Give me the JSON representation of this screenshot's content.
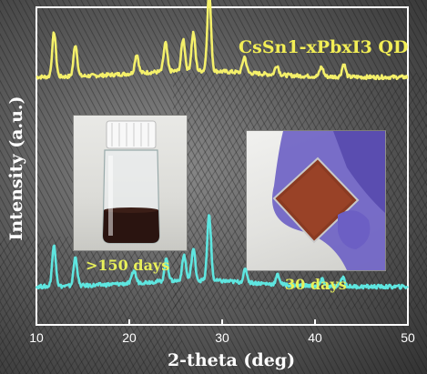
{
  "chart_data": {
    "type": "line",
    "xlabel": "2-theta (deg)",
    "ylabel": "Intensity (a.u.)",
    "xlim": [
      10,
      50
    ],
    "x_ticks": [
      "10",
      "20",
      "30",
      "40",
      "50"
    ],
    "series": [
      {
        "name": "CsSn1-xPbxI3 QD",
        "color": "#f4f06a",
        "baseline": 0.78,
        "peaks": [
          {
            "x": 11.9,
            "h": 0.14
          },
          {
            "x": 14.2,
            "h": 0.1
          },
          {
            "x": 20.8,
            "h": 0.06
          },
          {
            "x": 23.9,
            "h": 0.09
          },
          {
            "x": 25.8,
            "h": 0.1
          },
          {
            "x": 26.9,
            "h": 0.12
          },
          {
            "x": 28.6,
            "h": 0.25
          },
          {
            "x": 32.4,
            "h": 0.05
          },
          {
            "x": 35.9,
            "h": 0.03
          },
          {
            "x": 40.7,
            "h": 0.03
          },
          {
            "x": 43.1,
            "h": 0.04
          }
        ]
      },
      {
        "name": "",
        "color": "#5ee6e0",
        "baseline": 0.12,
        "peaks": [
          {
            "x": 11.9,
            "h": 0.13
          },
          {
            "x": 14.2,
            "h": 0.09
          },
          {
            "x": 20.5,
            "h": 0.04
          },
          {
            "x": 24.0,
            "h": 0.07
          },
          {
            "x": 25.9,
            "h": 0.08
          },
          {
            "x": 26.9,
            "h": 0.1
          },
          {
            "x": 28.6,
            "h": 0.21
          },
          {
            "x": 32.5,
            "h": 0.04
          },
          {
            "x": 36.0,
            "h": 0.03
          },
          {
            "x": 40.8,
            "h": 0.02
          },
          {
            "x": 43.0,
            "h": 0.03
          }
        ]
      }
    ],
    "annotations": {
      "series_label": "CsSn1-xPbxI3 QD",
      "vial_label": ">150 days",
      "film_label": "30 days"
    },
    "grid": false
  },
  "colors": {
    "axis": "#ffffff",
    "label_yellow": "#f2ee55",
    "label_green": "#e8f05a",
    "trace_yellow": "#f4f06a",
    "trace_cyan": "#5ee6e0"
  }
}
